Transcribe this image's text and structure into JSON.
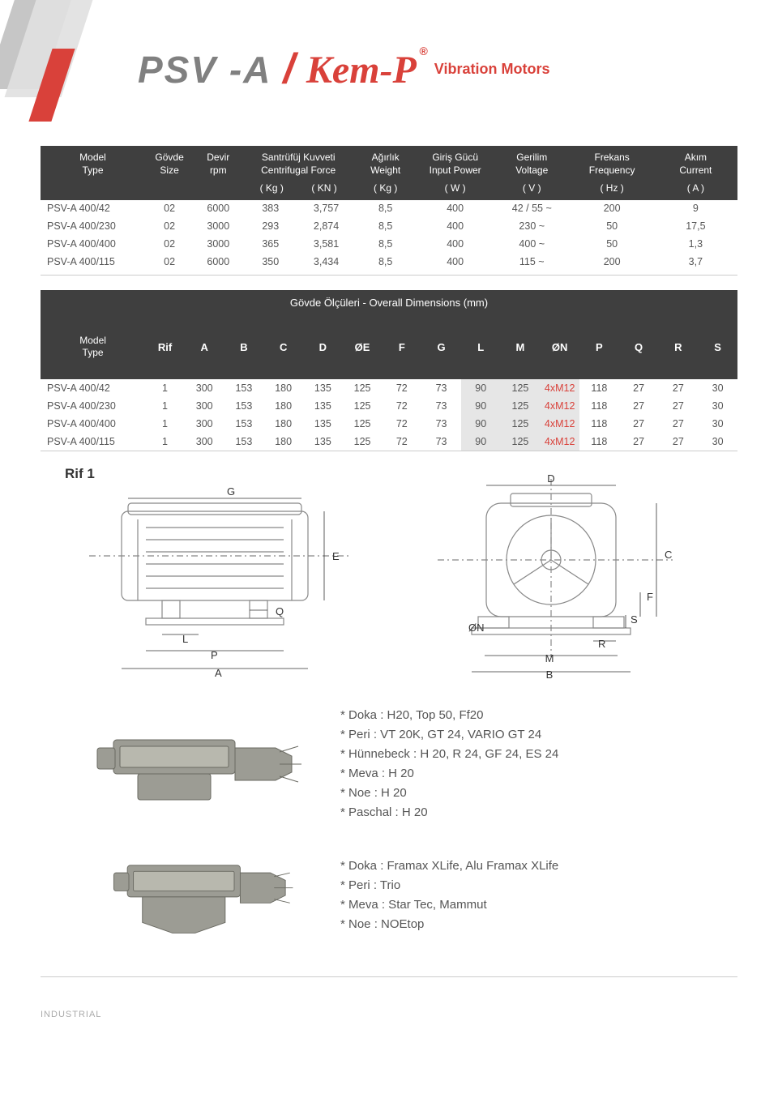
{
  "header": {
    "psva": "PSV -A",
    "kemp": "Kem-P",
    "reg": "®",
    "vm": "Vibration Motors"
  },
  "t1": {
    "headers": [
      {
        "l1": "Model",
        "l2": "Type",
        "unit": ""
      },
      {
        "l1": "Gövde",
        "l2": "Size",
        "unit": ""
      },
      {
        "l1": "Devir",
        "l2": "rpm",
        "unit": ""
      },
      {
        "l1": "Santrüfüj  Kuvveti",
        "l2": "Centrifugal Force",
        "unit": "( Kg )",
        "span": 2,
        "unit2": "( KN )"
      },
      {
        "l1": "Ağırlık",
        "l2": "Weight",
        "unit": "( Kg )"
      },
      {
        "l1": "Giriş Gücü",
        "l2": "Input Power",
        "unit": "( W )"
      },
      {
        "l1": "Gerilim",
        "l2": "Voltage",
        "unit": "( V )"
      },
      {
        "l1": "Frekans",
        "l2": "Frequency",
        "unit": "( Hz )"
      },
      {
        "l1": "Akım",
        "l2": "Current",
        "unit": "( A )"
      }
    ],
    "rows": [
      [
        "PSV-A 400/42",
        "02",
        "6000",
        "383",
        "3,757",
        "8,5",
        "400",
        "42 / 55 ~",
        "200",
        "9"
      ],
      [
        "PSV-A 400/230",
        "02",
        "3000",
        "293",
        "2,874",
        "8,5",
        "400",
        "230 ~",
        "50",
        "17,5"
      ],
      [
        "PSV-A 400/400",
        "02",
        "3000",
        "365",
        "3,581",
        "8,5",
        "400",
        "400 ~",
        "50",
        "1,3"
      ],
      [
        "PSV-A 400/115",
        "02",
        "6000",
        "350",
        "3,434",
        "8,5",
        "400",
        "115 ~",
        "200",
        "3,7"
      ]
    ]
  },
  "dim_band": "Gövde Ölçüleri - Overall Dimensions (mm)",
  "t2": {
    "model_header": {
      "l1": "Model",
      "l2": "Type"
    },
    "cols": [
      "Rif",
      "A",
      "B",
      "C",
      "D",
      "ØE",
      "F",
      "G",
      "L",
      "M",
      "ØN",
      "P",
      "Q",
      "R",
      "S"
    ],
    "rows": [
      {
        "model": "PSV-A 400/42",
        "vals": [
          "1",
          "300",
          "153",
          "180",
          "135",
          "125",
          "72",
          "73",
          "90",
          "125",
          "4xM12",
          "118",
          "27",
          "27",
          "30"
        ]
      },
      {
        "model": "PSV-A 400/230",
        "vals": [
          "1",
          "300",
          "153",
          "180",
          "135",
          "125",
          "72",
          "73",
          "90",
          "125",
          "4xM12",
          "118",
          "27",
          "27",
          "30"
        ]
      },
      {
        "model": "PSV-A 400/400",
        "vals": [
          "1",
          "300",
          "153",
          "180",
          "135",
          "125",
          "72",
          "73",
          "90",
          "125",
          "4xM12",
          "118",
          "27",
          "27",
          "30"
        ]
      },
      {
        "model": "PSV-A 400/115",
        "vals": [
          "1",
          "300",
          "153",
          "180",
          "135",
          "125",
          "72",
          "73",
          "90",
          "125",
          "4xM12",
          "118",
          "27",
          "27",
          "30"
        ]
      }
    ],
    "hl_cols": [
      8,
      9
    ],
    "red_col": 10
  },
  "diagram": {
    "rif": "Rif 1",
    "labels_left": [
      "G",
      "E",
      "Q",
      "L",
      "P",
      "A"
    ],
    "labels_right": [
      "D",
      "C",
      "F",
      "S",
      "ØN",
      "R",
      "M",
      "B"
    ]
  },
  "compat1": [
    "* Doka : H20, Top 50, Ff20",
    "* Peri : VT 20K, GT 24, VARIO GT 24",
    "* Hünnebeck : H 20, R 24, GF 24, ES 24",
    "* Meva : H 20",
    "* Noe : H 20",
    "* Paschal : H 20"
  ],
  "compat2": [
    "* Doka : Framax XLife, Alu Framax XLife",
    "* Peri : Trio",
    "* Meva : Star Tec, Mammut",
    "* Noe : NOEtop"
  ],
  "footer": "INDUSTRIAL",
  "colors": {
    "dark": "#3f3f3f",
    "red": "#d9413a",
    "grey_text": "#555555",
    "hl": "#e6e6e6"
  }
}
